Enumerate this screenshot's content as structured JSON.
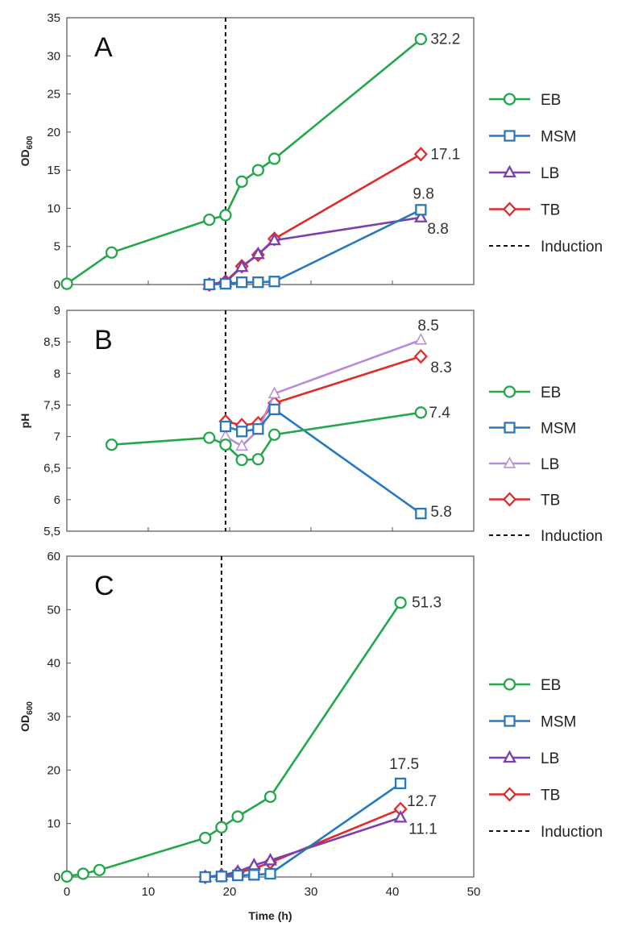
{
  "chart_data": [
    {
      "type": "line",
      "panel": "A",
      "ylabel": "OD",
      "ylabel_sub": "600",
      "xlim": [
        0,
        50
      ],
      "ylim": [
        0,
        35
      ],
      "yticks": [
        "0",
        "5",
        "10",
        "15",
        "20",
        "25",
        "30",
        "35"
      ],
      "induction_x": 19.5,
      "series": [
        {
          "name": "EB",
          "color": "#22a84a",
          "marker": "circle",
          "x": [
            0,
            5.5,
            17.5,
            19.5,
            21.5,
            23.5,
            25.5,
            43.5
          ],
          "y": [
            0.1,
            4.2,
            8.5,
            9.1,
            13.5,
            15.0,
            16.5,
            32.2
          ]
        },
        {
          "name": "MSM",
          "color": "#2878c0",
          "marker": "square",
          "x": [
            17.5,
            19.5,
            21.5,
            23.5,
            25.5,
            43.5
          ],
          "y": [
            0.0,
            0.1,
            0.3,
            0.3,
            0.4,
            9.8
          ]
        },
        {
          "name": "LB",
          "color": "#7a3fb0",
          "marker": "triangle",
          "x": [
            17.5,
            19.5,
            21.5,
            23.5,
            25.5,
            43.5
          ],
          "y": [
            0.0,
            0.3,
            2.3,
            4.0,
            5.8,
            8.8
          ]
        },
        {
          "name": "TB",
          "color": "#e32a2a",
          "marker": "diamond",
          "x": [
            17.5,
            19.5,
            21.5,
            23.5,
            25.5,
            43.5
          ],
          "y": [
            0.0,
            0.4,
            2.4,
            3.9,
            6.0,
            17.1
          ]
        }
      ],
      "annotations": [
        {
          "text": "32.2",
          "x": 43.5,
          "y": 32.2
        },
        {
          "text": "17.1",
          "x": 43.5,
          "y": 17.1
        },
        {
          "text": "9.8",
          "x": 43.5,
          "y": 9.8
        },
        {
          "text": "8.8",
          "x": 43.5,
          "y": 8.8
        }
      ],
      "legend": [
        "EB",
        "MSM",
        "LB",
        "TB",
        "Induction"
      ]
    },
    {
      "type": "line",
      "panel": "B",
      "ylabel": "pH",
      "xlim": [
        0,
        50
      ],
      "ylim": [
        5.5,
        9
      ],
      "yticks": [
        "5,5",
        "6",
        "6,5",
        "7",
        "7,5",
        "8",
        "8,5",
        "9"
      ],
      "induction_x": 19.5,
      "series": [
        {
          "name": "EB",
          "color": "#22a84a",
          "marker": "circle",
          "x": [
            5.5,
            17.5,
            19.5,
            21.5,
            23.5,
            25.5,
            43.5
          ],
          "y": [
            6.87,
            6.98,
            6.87,
            6.63,
            6.64,
            7.03,
            7.38
          ]
        },
        {
          "name": "MSM",
          "color": "#2878c0",
          "marker": "square",
          "x": [
            19.5,
            21.5,
            23.5,
            25.5,
            43.5
          ],
          "y": [
            7.16,
            7.08,
            7.12,
            7.43,
            5.78
          ]
        },
        {
          "name": "LB",
          "color": "#b98ad8",
          "marker": "triangle-open",
          "x": [
            19.5,
            21.5,
            23.5,
            25.5,
            43.5
          ],
          "y": [
            7.0,
            6.85,
            7.1,
            7.68,
            8.53
          ]
        },
        {
          "name": "TB",
          "color": "#e32a2a",
          "marker": "diamond",
          "x": [
            19.5,
            21.5,
            23.5,
            25.5,
            43.5
          ],
          "y": [
            7.24,
            7.18,
            7.21,
            7.53,
            8.27
          ]
        }
      ],
      "annotations": [
        {
          "text": "8.5",
          "x": 43.5,
          "y": 8.53
        },
        {
          "text": "8.3",
          "x": 43.5,
          "y": 8.27
        },
        {
          "text": "7.4",
          "x": 43.5,
          "y": 7.38
        },
        {
          "text": "5.8",
          "x": 43.5,
          "y": 5.78
        }
      ],
      "legend": [
        "EB",
        "MSM",
        "LB",
        "TB",
        "Induction"
      ]
    },
    {
      "type": "line",
      "panel": "C",
      "ylabel": "OD",
      "ylabel_sub": "600",
      "xlabel": "Time (h)",
      "xlim": [
        0,
        50
      ],
      "ylim": [
        0,
        60
      ],
      "xticks": [
        "0",
        "10",
        "20",
        "30",
        "40",
        "50"
      ],
      "yticks": [
        "0",
        "10",
        "20",
        "30",
        "40",
        "50",
        "60"
      ],
      "induction_x": 19,
      "series": [
        {
          "name": "EB",
          "color": "#22a84a",
          "marker": "circle",
          "x": [
            0,
            2,
            4,
            17,
            19,
            21,
            25,
            41
          ],
          "y": [
            0.1,
            0.6,
            1.3,
            7.3,
            9.3,
            11.3,
            15.0,
            51.3
          ]
        },
        {
          "name": "MSM",
          "color": "#2878c0",
          "marker": "square",
          "x": [
            17,
            19,
            21,
            23,
            25,
            41
          ],
          "y": [
            0.0,
            0.1,
            0.3,
            0.4,
            0.6,
            17.5
          ]
        },
        {
          "name": "LB",
          "color": "#7a3fb0",
          "marker": "triangle",
          "x": [
            17,
            19,
            21,
            23,
            25,
            41
          ],
          "y": [
            0.0,
            0.3,
            1.0,
            2.2,
            3.1,
            11.1
          ]
        },
        {
          "name": "TB",
          "color": "#e32a2a",
          "marker": "diamond",
          "x": [
            17,
            19,
            21,
            23,
            25,
            41
          ],
          "y": [
            0.0,
            0.3,
            0.8,
            1.6,
            2.7,
            12.7
          ]
        }
      ],
      "annotations": [
        {
          "text": "51.3",
          "x": 41,
          "y": 51.3
        },
        {
          "text": "17.5",
          "x": 41,
          "y": 17.5
        },
        {
          "text": "12.7",
          "x": 41,
          "y": 12.7
        },
        {
          "text": "11.1",
          "x": 41,
          "y": 11.1
        }
      ],
      "legend": [
        "EB",
        "MSM",
        "LB",
        "TB",
        "Induction"
      ]
    }
  ]
}
